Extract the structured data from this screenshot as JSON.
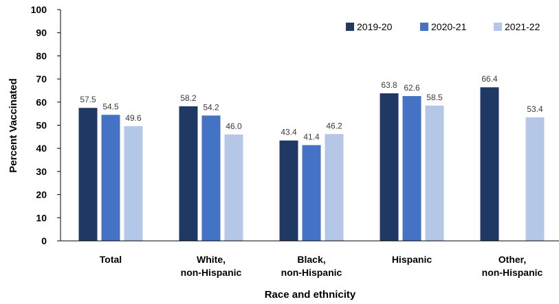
{
  "chart_data": {
    "type": "bar",
    "title": "",
    "xlabel": "Race and ethnicity",
    "ylabel": "Percent Vaccinated",
    "ylim": [
      0,
      100
    ],
    "yticks": [
      "0",
      "10",
      "20",
      "30",
      "40",
      "50",
      "60",
      "70",
      "80",
      "90",
      "100"
    ],
    "categories": [
      [
        "Total"
      ],
      [
        "White,",
        "non-Hispanic"
      ],
      [
        "Black,",
        "non-Hispanic"
      ],
      [
        "Hispanic"
      ],
      [
        "Other,",
        "non-Hispanic"
      ]
    ],
    "series": [
      {
        "name": "2019-20",
        "color": "#203864",
        "values": [
          57.5,
          58.2,
          43.4,
          63.8,
          66.4
        ],
        "labels": [
          "57.5",
          "58.2",
          "43.4",
          "63.8",
          "66.4"
        ]
      },
      {
        "name": "2020-21",
        "color": "#4472c4",
        "values": [
          54.5,
          54.2,
          41.4,
          62.6,
          null
        ],
        "labels": [
          "54.5",
          "54.2",
          "41.4",
          "62.6",
          ""
        ]
      },
      {
        "name": "2021-22",
        "color": "#b4c7e7",
        "values": [
          49.6,
          46.0,
          46.2,
          58.5,
          53.4
        ],
        "labels": [
          "49.6",
          "46.0",
          "46.2",
          "58.5",
          "53.4"
        ]
      }
    ],
    "grid": false,
    "legend_position": "top-right"
  }
}
